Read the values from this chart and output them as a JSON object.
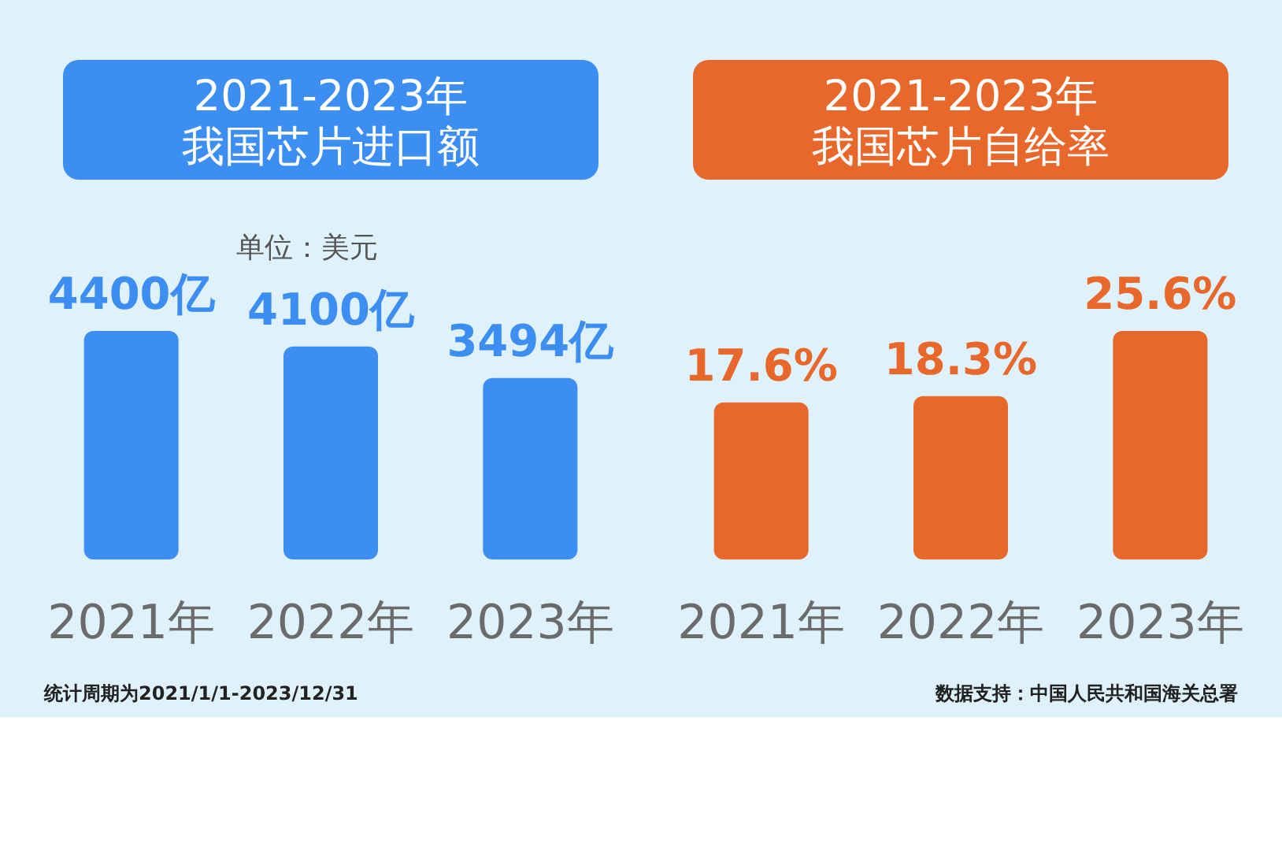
{
  "chart_data": [
    {
      "type": "bar",
      "title": "2021-2023年我国芯片进口额",
      "subtitle": "单位：美元",
      "categories": [
        "2021年",
        "2022年",
        "2023年"
      ],
      "values": [
        4400,
        4100,
        3494
      ],
      "colors": [
        "#3d8ef2",
        "#3d8ef2",
        "#3d8ef2"
      ],
      "value_labels": [
        "4400亿",
        "4100亿",
        "3494亿"
      ],
      "annotations": [
        "统计周期为2021/1/1-2023/12/31"
      ]
    },
    {
      "type": "bar",
      "title": "2021-2023年我国芯片自给率",
      "categories": [
        "2021年",
        "2022年",
        "2023年"
      ],
      "values": [
        17.6,
        18.3,
        25.6
      ],
      "colors": [
        "#e8672a",
        "#e8672a",
        "#e8672a"
      ],
      "value_labels": [
        "17.6%",
        "18.3%",
        "25.6%"
      ],
      "annotations": [
        "数据支持：中国人民共和国海关总署"
      ]
    }
  ]
}
